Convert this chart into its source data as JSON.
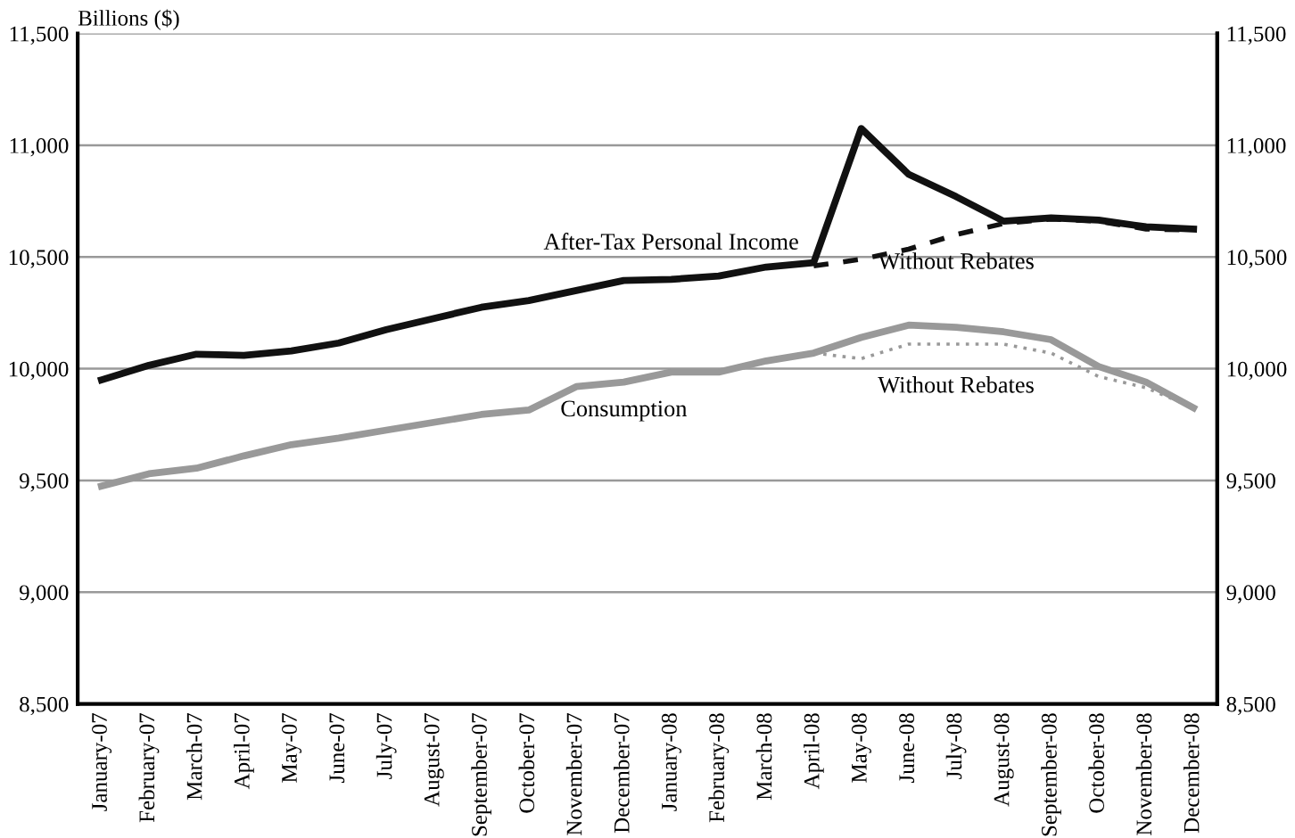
{
  "chart_data": {
    "type": "line",
    "ylabel": "Billions ($)",
    "categories": [
      "January-07",
      "February-07",
      "March-07",
      "April-07",
      "May-07",
      "June-07",
      "July-07",
      "August-07",
      "September-07",
      "October-07",
      "November-07",
      "December-07",
      "January-08",
      "February-08",
      "March-08",
      "April-08",
      "May-08",
      "June-08",
      "July-08",
      "August-08",
      "September-08",
      "October-08",
      "November-08",
      "December-08"
    ],
    "series": [
      {
        "name": "After-Tax Personal Income",
        "color": "#111111",
        "line_style": "solid",
        "values": [
          9950,
          10015,
          10065,
          10060,
          10080,
          10115,
          10175,
          10225,
          10275,
          10305,
          10350,
          10395,
          10400,
          10415,
          10455,
          10475,
          11075,
          10870,
          10770,
          10660,
          10675,
          10665,
          10635,
          10625
        ]
      },
      {
        "name": "Without Rebates",
        "color": "#111111",
        "line_style": "dashed",
        "values": [
          null,
          null,
          null,
          null,
          null,
          null,
          null,
          null,
          null,
          null,
          null,
          null,
          null,
          null,
          null,
          10460,
          10490,
          10535,
          10600,
          10650,
          10670,
          10660,
          10625,
          10620
        ]
      },
      {
        "name": "Consumption",
        "color": "#999999",
        "line_style": "solid",
        "values": [
          9475,
          9530,
          9555,
          9610,
          9660,
          9690,
          9725,
          9760,
          9795,
          9815,
          9920,
          9940,
          9985,
          9985,
          10035,
          10070,
          10140,
          10195,
          10185,
          10165,
          10130,
          10010,
          9940,
          9825
        ]
      },
      {
        "name": "Without Rebates",
        "color": "#999999",
        "line_style": "dotted",
        "values": [
          null,
          null,
          null,
          null,
          null,
          null,
          null,
          null,
          null,
          null,
          null,
          null,
          null,
          null,
          null,
          10070,
          10045,
          10110,
          10110,
          10110,
          10070,
          9965,
          9915,
          9825
        ]
      }
    ],
    "ylim": [
      8500,
      11500
    ],
    "yticks": [
      {
        "value": 8500,
        "label": "8,500"
      },
      {
        "value": 9000,
        "label": "9,000"
      },
      {
        "value": 9500,
        "label": "9,500"
      },
      {
        "value": 10000,
        "label": "10,000"
      },
      {
        "value": 10500,
        "label": "10,500"
      },
      {
        "value": 11000,
        "label": "11,000"
      },
      {
        "value": 11500,
        "label": "11,500"
      }
    ],
    "y2lim": [
      8500,
      11500
    ],
    "y2ticks": [
      {
        "value": 8500,
        "label": "8,500"
      },
      {
        "value": 9000,
        "label": "9,000"
      },
      {
        "value": 9500,
        "label": "9,500"
      },
      {
        "value": 10000,
        "label": "10,000"
      },
      {
        "value": 10500,
        "label": "10,500"
      },
      {
        "value": 11000,
        "label": "11,000"
      },
      {
        "value": 11500,
        "label": "11,500"
      }
    ],
    "grid": "y"
  }
}
